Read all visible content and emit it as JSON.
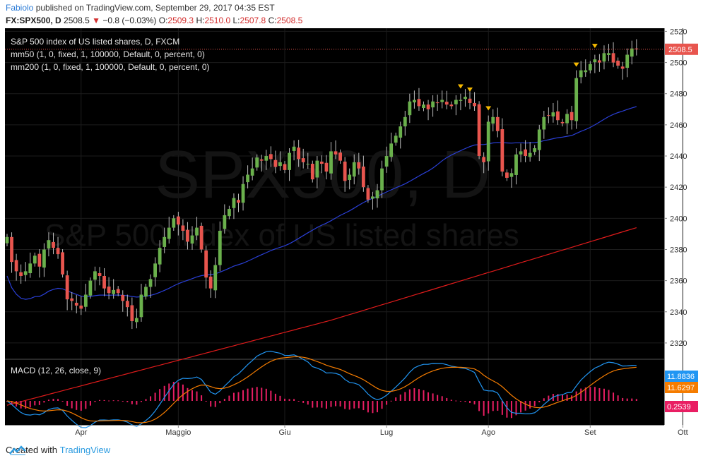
{
  "header": {
    "user": "Fabiolo",
    "published_text": "published on TradingView.com, September 29, 2017 04:35 EST",
    "symbol_line": "FX:SPX500, D",
    "price": "2508.5",
    "change": "−0.8 (−0.03%)",
    "o_label": "O:",
    "o": "2509.3",
    "h_label": "H:",
    "h": "2510.0",
    "l_label": "L:",
    "l": "2507.8",
    "c_label": "C:",
    "c": "2508.5"
  },
  "legend": {
    "title": "S&P 500 index of US listed shares, D, FXCM",
    "ma50": "mm50 (1, 0, fixed, 1, 100000, Default, 0, percent, 0)",
    "ma200": "mm200 (1, 0, fixed, 1, 100000, Default, 0, percent, 0)",
    "macd": "MACD (12, 26, close, 9)"
  },
  "watermark": {
    "symbol": "SPX500, D",
    "name": "S&P 500 index of US listed shares"
  },
  "footer": {
    "created_with": "Created with",
    "brand": "TradingView"
  },
  "colors": {
    "up": "#6ab04c",
    "down": "#e8554e",
    "ma50": "#2a3fd6",
    "ma200": "#e01b1b",
    "macd": "#2196f3",
    "signal": "#f57c00",
    "hist": "#e91e63",
    "marker": "#f5b800"
  },
  "chart_data": {
    "type": "candlestick",
    "price_axis": {
      "min": 2310,
      "max": 2522,
      "ticks": [
        2320,
        2340,
        2360,
        2380,
        2400,
        2420,
        2440,
        2460,
        2480,
        2500,
        2520
      ]
    },
    "months": [
      "Apr",
      "Maggio",
      "Giu",
      "Lug",
      "Ago",
      "Set",
      "Ott"
    ],
    "month_start_index": [
      16,
      37,
      60,
      82,
      104,
      126,
      146
    ],
    "last_price_label": "2508.5",
    "last_price": 2508.5,
    "close": [
      2388,
      2372,
      2366,
      2363,
      2366,
      2371,
      2376,
      2369,
      2380,
      2386,
      2381,
      2377,
      2364,
      2348,
      2347,
      2344,
      2342,
      2351,
      2360,
      2366,
      2363,
      2355,
      2352,
      2354,
      2352,
      2347,
      2343,
      2334,
      2336,
      2351,
      2356,
      2361,
      2371,
      2381,
      2388,
      2394,
      2400,
      2396,
      2392,
      2385,
      2389,
      2394,
      2380,
      2362,
      2355,
      2370,
      2392,
      2402,
      2406,
      2413,
      2410,
      2422,
      2428,
      2432,
      2439,
      2437,
      2440,
      2438,
      2433,
      2436,
      2431,
      2442,
      2446,
      2438,
      2436,
      2435,
      2425,
      2437,
      2435,
      2430,
      2443,
      2441,
      2437,
      2424,
      2428,
      2436,
      2432,
      2420,
      2412,
      2414,
      2418,
      2432,
      2440,
      2448,
      2453,
      2459,
      2465,
      2475,
      2476,
      2472,
      2473,
      2470,
      2475,
      2474,
      2476,
      2473,
      2472,
      2476,
      2476,
      2478,
      2474,
      2472,
      2440,
      2436,
      2462,
      2465,
      2456,
      2430,
      2426,
      2429,
      2441,
      2443,
      2440,
      2442,
      2445,
      2457,
      2465,
      2466,
      2468,
      2463,
      2461,
      2467,
      2463,
      2490,
      2495,
      2495,
      2499,
      2502,
      2500,
      2506,
      2506,
      2500,
      2498,
      2496,
      2505,
      2509,
      2508.5
    ],
    "signal_markers": [
      {
        "index": 98,
        "dir": "up"
      },
      {
        "index": 100,
        "dir": "down"
      },
      {
        "index": 104,
        "dir": "down"
      },
      {
        "index": 123,
        "dir": "up"
      },
      {
        "index": 127,
        "dir": "down"
      }
    ],
    "macd_axis": {
      "min": -8,
      "max": 14
    },
    "macd_last": "11.8836",
    "signal_last": "11.6297",
    "hist_last": "0.2539"
  }
}
